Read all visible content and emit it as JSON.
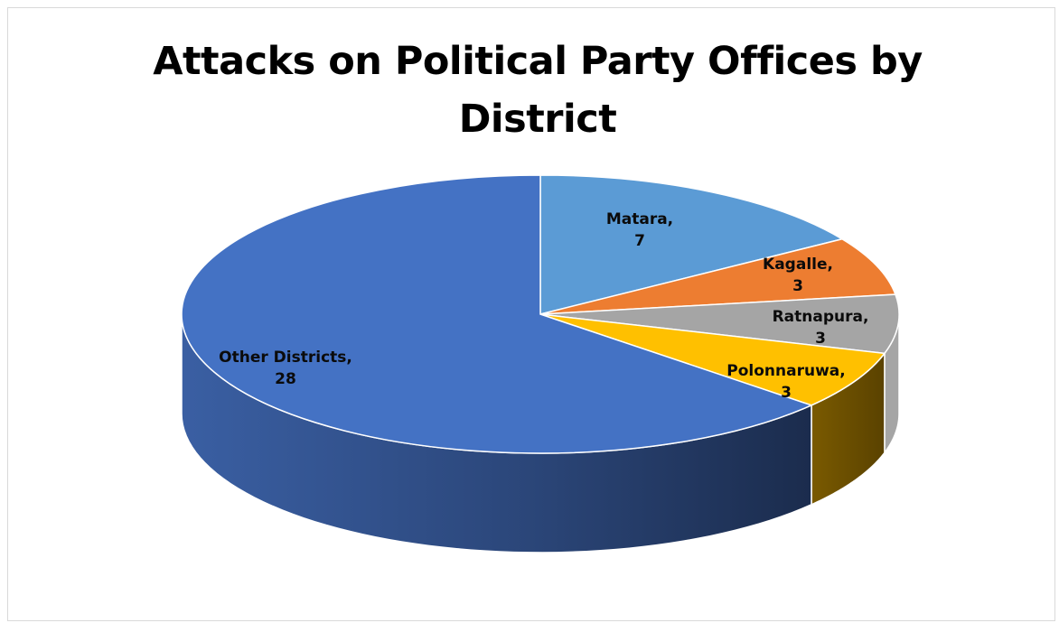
{
  "chart_data": {
    "type": "pie",
    "title_lines": [
      "Attacks on Political Party Offices by",
      "District"
    ],
    "slices": [
      {
        "name": "Matara",
        "value": 7,
        "color": "#5B9BD5",
        "label_lines": [
          "Matara,",
          "7"
        ]
      },
      {
        "name": "Kagalle",
        "value": 3,
        "color": "#ED7D31",
        "label_lines": [
          "Kagalle,",
          "3"
        ]
      },
      {
        "name": "Ratnapura",
        "value": 3,
        "color": "#A5A5A5",
        "label_lines": [
          "Ratnapura,",
          "3"
        ]
      },
      {
        "name": "Polonnaruwa",
        "value": 3,
        "color": "#FFC000",
        "label_lines": [
          "Polonnaruwa,",
          "3"
        ]
      },
      {
        "name": "Other Districts",
        "value": 28,
        "color": "#4472C4",
        "label_lines": [
          "Other Districts,",
          "28"
        ]
      }
    ],
    "style": "3d",
    "legend": "none"
  }
}
